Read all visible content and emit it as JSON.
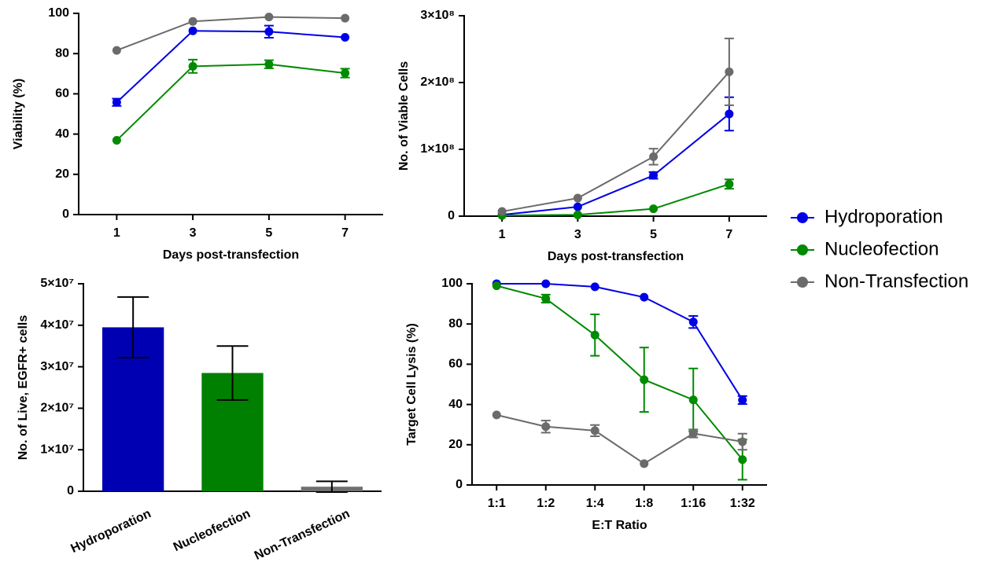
{
  "chart_data": [
    {
      "type": "line",
      "ylabel": "Viability (%)",
      "xlabel": "Days post-transfection",
      "x": [
        1,
        3,
        5,
        7
      ],
      "xlim": [
        0,
        8
      ],
      "xticks": [
        1,
        3,
        5,
        7
      ],
      "ylim": [
        0,
        100
      ],
      "yticks": [
        0,
        20,
        40,
        60,
        80,
        100
      ],
      "series": [
        {
          "name": "Hydroporation",
          "color": "#0000e6",
          "values": [
            55.8,
            91.3,
            90.9,
            88.1
          ],
          "errors": [
            1.8,
            0,
            3,
            0
          ]
        },
        {
          "name": "Nucleofection",
          "color": "#008a00",
          "values": [
            36.9,
            73.7,
            74.7,
            70.3
          ],
          "errors": [
            0,
            3.3,
            2,
            2.2
          ]
        },
        {
          "name": "Non-Transfection",
          "color": "#6b6b6b",
          "values": [
            81.6,
            96,
            98.2,
            97.6
          ],
          "errors": [
            0,
            0,
            0,
            0
          ]
        }
      ]
    },
    {
      "type": "line",
      "ylabel": "No. of Viable Cells",
      "xlabel": "Days post-transfection",
      "x": [
        1,
        3,
        5,
        7
      ],
      "xlim": [
        0,
        8
      ],
      "xticks": [
        1,
        3,
        5,
        7
      ],
      "ylim": [
        0,
        300000000
      ],
      "yticks": [
        0,
        {
          "value": 100000000,
          "label": "1×10⁸"
        },
        {
          "value": 200000000,
          "label": "2×10⁸"
        },
        {
          "value": 300000000,
          "label": "3×10⁸"
        }
      ],
      "series": [
        {
          "color": "#0000e6",
          "values": [
            2000000,
            14000000,
            61000000,
            153000000
          ],
          "errors": [
            0,
            0,
            5000000,
            25000000
          ]
        },
        {
          "color": "#008a00",
          "values": [
            1000000,
            2000000,
            11000000,
            48000000
          ],
          "errors": [
            0,
            0,
            0,
            7000000
          ]
        },
        {
          "color": "#6b6b6b",
          "values": [
            7000000,
            27000000,
            89000000,
            216000000
          ],
          "errors": [
            0,
            0,
            12000000,
            50000000
          ]
        }
      ]
    },
    {
      "type": "bar",
      "ylabel": "No. of Live, EGFR+ cells",
      "categories": [
        "Hydroporation",
        "Nucleofection",
        "Non-Transfection"
      ],
      "values": [
        39500000,
        28500000,
        1100000
      ],
      "errors": [
        7300000,
        6500000,
        1300000
      ],
      "colors": [
        "#0000b3",
        "#008000",
        "#707070"
      ],
      "ylim": [
        0,
        50000000
      ],
      "yticks": [
        0,
        {
          "value": 10000000,
          "label": "1×10⁷"
        },
        {
          "value": 20000000,
          "label": "2×10⁷"
        },
        {
          "value": 30000000,
          "label": "3×10⁷"
        },
        {
          "value": 40000000,
          "label": "4×10⁷"
        },
        {
          "value": 50000000,
          "label": "5×10⁷"
        }
      ]
    },
    {
      "type": "line",
      "ylabel": "Target Cell Lysis (%)",
      "xlabel": "E:T Ratio",
      "categories": [
        "1:1",
        "1:2",
        "1:4",
        "1:8",
        "1:16",
        "1:32"
      ],
      "ylim": [
        0,
        100
      ],
      "yticks": [
        0,
        20,
        40,
        60,
        80,
        100
      ],
      "series": [
        {
          "color": "#0000e6",
          "values": [
            100,
            100,
            98.5,
            93.3,
            81,
            42.2
          ],
          "errors": [
            0,
            0,
            0,
            0,
            3,
            2
          ]
        },
        {
          "color": "#008a00",
          "values": [
            99,
            92.6,
            74.5,
            52.3,
            42.3,
            12.6
          ],
          "errors": [
            0,
            2,
            10.3,
            16,
            15.6,
            10
          ]
        },
        {
          "color": "#6b6b6b",
          "values": [
            34.8,
            29,
            27,
            10.6,
            25.6,
            21.5
          ],
          "errors": [
            0,
            3,
            2.8,
            0,
            2,
            4
          ]
        }
      ]
    }
  ]
}
